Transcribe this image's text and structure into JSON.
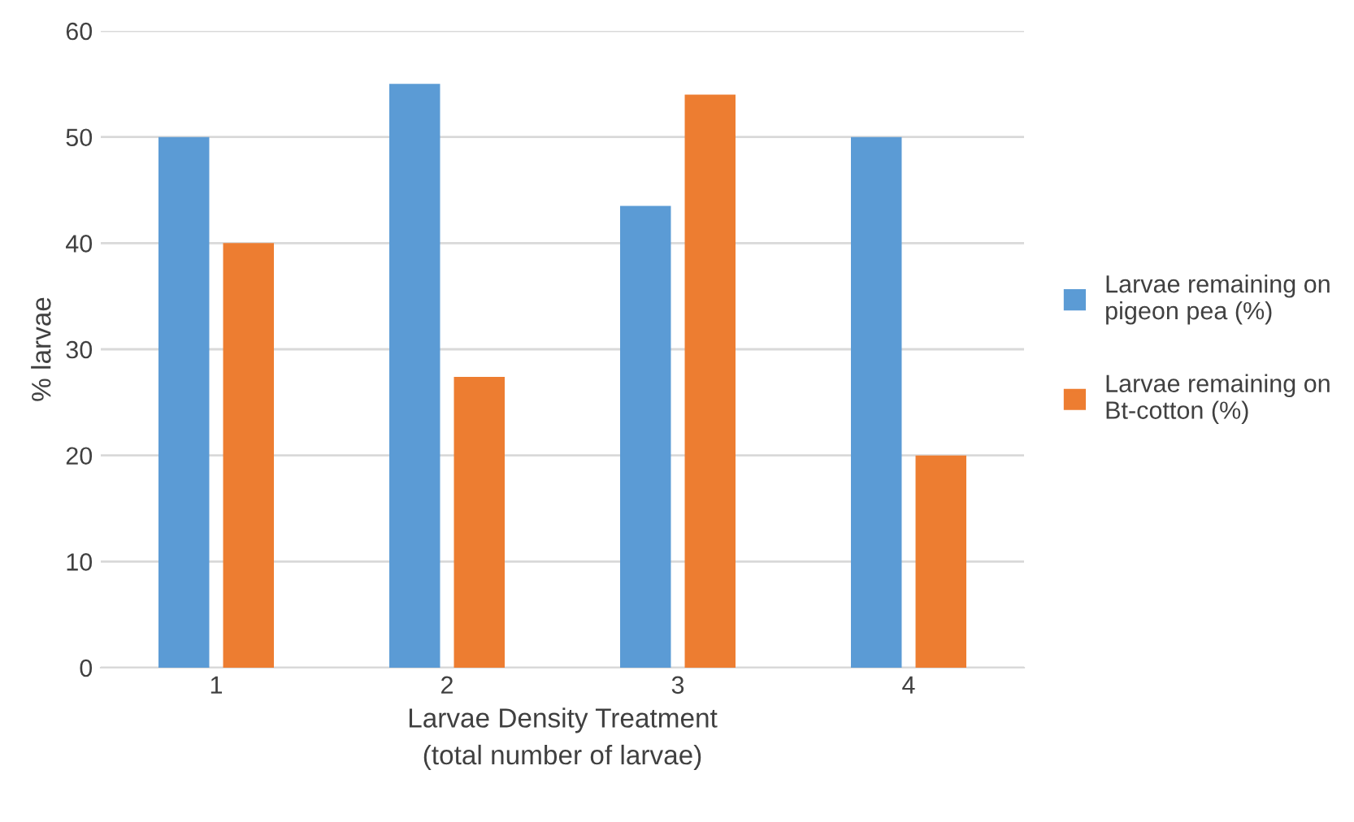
{
  "chart_data": {
    "type": "bar",
    "xlabel": "Larvae Density Treatment\n(total number of larvae)",
    "ylabel": "% larvae",
    "categories": [
      "1",
      "2",
      "3",
      "4"
    ],
    "series": [
      {
        "name": "Larvae remaining on pigeon pea (%)",
        "color": "#5b9bd5",
        "values": [
          50,
          55,
          43.5,
          50
        ]
      },
      {
        "name": "Larvae remaining on Bt-cotton (%)",
        "color": "#ed7d31",
        "values": [
          40,
          27.4,
          54,
          20
        ]
      }
    ],
    "ylim": [
      0,
      60
    ],
    "yticks": [
      0,
      10,
      20,
      30,
      40,
      50,
      60
    ],
    "grid": "y",
    "legend": "right"
  }
}
